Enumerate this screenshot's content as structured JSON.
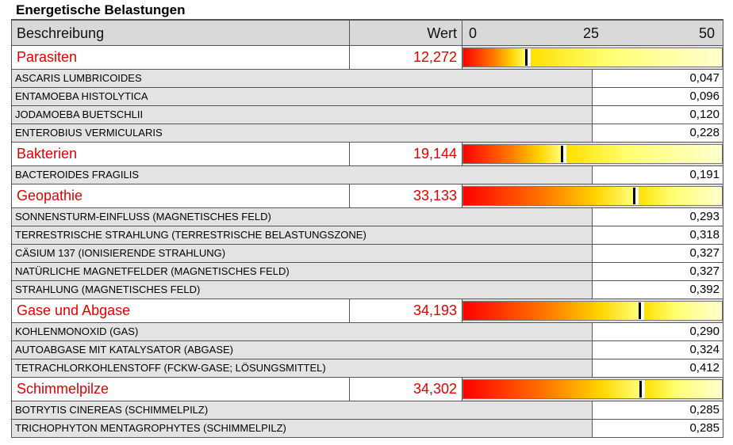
{
  "title": "Energetische Belastungen",
  "header": {
    "beschreibung": "Beschreibung",
    "wert": "Wert",
    "scale": [
      "0",
      "25",
      "50"
    ]
  },
  "scale_max": 50,
  "categories": [
    {
      "name": "Parasiten",
      "value": "12,272",
      "level": 12.272,
      "items": [
        {
          "name": "ASCARIS LUMBRICOIDES",
          "value": "0,047"
        },
        {
          "name": "ENTAMOEBA HISTOLYTICA",
          "value": "0,096"
        },
        {
          "name": "JODAMOEBA BUETSCHLII",
          "value": "0,120"
        },
        {
          "name": "ENTEROBIUS VERMICULARIS",
          "value": "0,228"
        }
      ]
    },
    {
      "name": "Bakterien",
      "value": "19,144",
      "level": 19.144,
      "items": [
        {
          "name": "BACTEROIDES FRAGILIS",
          "value": "0,191"
        }
      ]
    },
    {
      "name": "Geopathie",
      "value": "33,133",
      "level": 33.133,
      "items": [
        {
          "name": "SONNENSTURM-EINFLUSS (MAGNETISCHES FELD)",
          "value": "0,293"
        },
        {
          "name": "TERRESTRISCHE STRAHLUNG (TERRESTRISCHE BELASTUNGSZONE)",
          "value": "0,318"
        },
        {
          "name": "CÄSIUM 137 (IONISIERENDE STRAHLUNG)",
          "value": "0,327"
        },
        {
          "name": "NATÜRLICHE MAGNETFELDER (MAGNETISCHES FELD)",
          "value": "0,327"
        },
        {
          "name": "STRAHLUNG (MAGNETISCHES FELD)",
          "value": "0,392"
        }
      ]
    },
    {
      "name": "Gase und Abgase",
      "value": "34,193",
      "level": 34.193,
      "items": [
        {
          "name": "KOHLENMONOXID (GAS)",
          "value": "0,290"
        },
        {
          "name": "AUTOABGASE MIT KATALYSATOR (ABGASE)",
          "value": "0,324"
        },
        {
          "name": "TETRACHLORKOHLENSTOFF (FCKW-GASE; LÖSUNGSMITTEL)",
          "value": "0,412"
        }
      ]
    },
    {
      "name": "Schimmelpilze",
      "value": "34,302",
      "level": 34.302,
      "items": [
        {
          "name": "BOTRYTIS CINEREAS (SCHIMMELPILZ)",
          "value": "0,285"
        },
        {
          "name": "TRICHOPHYTON MENTAGROPHYTES (SCHIMMELPILZ)",
          "value": "0,285"
        }
      ]
    }
  ]
}
